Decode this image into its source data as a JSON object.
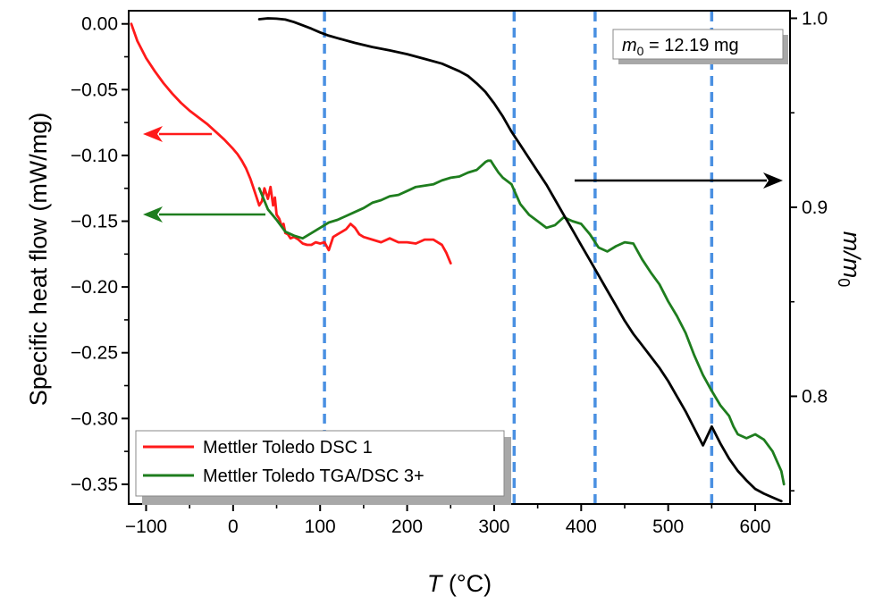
{
  "chart_data": {
    "type": "line",
    "x_axis": {
      "label_symbol": "T",
      "label_unit": " (°C)",
      "range": [
        -120,
        640
      ],
      "ticks": [
        -100,
        0,
        100,
        200,
        300,
        400,
        500,
        600
      ],
      "tick_labels": [
        "−100",
        "0",
        "100",
        "200",
        "300",
        "400",
        "500",
        "600"
      ]
    },
    "y_left": {
      "label": "Specific heat flow (mW/mg)",
      "range": [
        -0.365,
        0.01
      ],
      "ticks": [
        0.0,
        -0.05,
        -0.1,
        -0.15,
        -0.2,
        -0.25,
        -0.3,
        -0.35
      ],
      "tick_labels": [
        "0.00",
        "−0.05",
        "−0.10",
        "−0.15",
        "−0.20",
        "−0.25",
        "−0.30",
        "−0.35"
      ]
    },
    "y_right": {
      "label_main": "m/m",
      "label_sub": "0",
      "range": [
        0.743,
        1.004
      ],
      "ticks": [
        1.0,
        0.9,
        0.8
      ],
      "tick_labels": [
        "1.0",
        "0.9",
        "0.8"
      ]
    },
    "vertical_lines": [
      105,
      323,
      416,
      550
    ],
    "colors": {
      "dsc1": "#ff1a1a",
      "tga": "#1e7d1e",
      "mass": "#000000",
      "vline": "#4a90e2"
    },
    "series": [
      {
        "name": "Mettler Toledo DSC 1",
        "axis": "left",
        "x": [
          -117,
          -110,
          -100,
          -90,
          -80,
          -70,
          -60,
          -50,
          -40,
          -30,
          -20,
          -10,
          0,
          5,
          10,
          15,
          20,
          25,
          30,
          33,
          36,
          40,
          43,
          46,
          48,
          50,
          53,
          56,
          58,
          60,
          63,
          66,
          70,
          75,
          80,
          85,
          90,
          95,
          100,
          105,
          110,
          115,
          120,
          125,
          130,
          135,
          140,
          145,
          150,
          160,
          170,
          180,
          190,
          200,
          210,
          220,
          230,
          240,
          245,
          250
        ],
        "y": [
          0.0,
          -0.013,
          -0.026,
          -0.036,
          -0.045,
          -0.053,
          -0.06,
          -0.066,
          -0.071,
          -0.076,
          -0.082,
          -0.088,
          -0.095,
          -0.099,
          -0.104,
          -0.11,
          -0.118,
          -0.128,
          -0.138,
          -0.135,
          -0.125,
          -0.133,
          -0.124,
          -0.138,
          -0.132,
          -0.145,
          -0.148,
          -0.154,
          -0.152,
          -0.159,
          -0.16,
          -0.163,
          -0.162,
          -0.164,
          -0.167,
          -0.168,
          -0.168,
          -0.166,
          -0.167,
          -0.166,
          -0.172,
          -0.162,
          -0.16,
          -0.158,
          -0.156,
          -0.152,
          -0.155,
          -0.16,
          -0.162,
          -0.164,
          -0.166,
          -0.163,
          -0.166,
          -0.166,
          -0.167,
          -0.164,
          -0.164,
          -0.168,
          -0.174,
          -0.182
        ]
      },
      {
        "name": "Mettler Toledo TGA/DSC 3+",
        "axis": "left",
        "x": [
          30,
          40,
          50,
          60,
          70,
          80,
          90,
          100,
          110,
          120,
          130,
          140,
          150,
          160,
          170,
          180,
          190,
          200,
          210,
          220,
          230,
          240,
          250,
          260,
          270,
          280,
          290,
          293,
          296,
          300,
          305,
          310,
          320,
          330,
          340,
          350,
          360,
          370,
          380,
          390,
          400,
          410,
          420,
          430,
          440,
          450,
          460,
          470,
          480,
          490,
          500,
          510,
          520,
          530,
          540,
          550,
          560,
          570,
          575,
          580,
          590,
          600,
          610,
          620,
          630,
          633
        ],
        "y": [
          -0.125,
          -0.141,
          -0.149,
          -0.158,
          -0.161,
          -0.163,
          -0.159,
          -0.155,
          -0.151,
          -0.149,
          -0.146,
          -0.143,
          -0.14,
          -0.136,
          -0.134,
          -0.131,
          -0.13,
          -0.127,
          -0.124,
          -0.123,
          -0.122,
          -0.119,
          -0.117,
          -0.116,
          -0.113,
          -0.111,
          -0.105,
          -0.104,
          -0.104,
          -0.108,
          -0.113,
          -0.117,
          -0.122,
          -0.137,
          -0.145,
          -0.15,
          -0.155,
          -0.153,
          -0.147,
          -0.15,
          -0.152,
          -0.16,
          -0.17,
          -0.173,
          -0.169,
          -0.166,
          -0.167,
          -0.179,
          -0.189,
          -0.198,
          -0.211,
          -0.222,
          -0.235,
          -0.252,
          -0.267,
          -0.279,
          -0.29,
          -0.298,
          -0.306,
          -0.312,
          -0.315,
          -0.312,
          -0.316,
          -0.325,
          -0.34,
          -0.35
        ]
      },
      {
        "name": "m/m0",
        "axis": "right",
        "x": [
          30,
          40,
          50,
          60,
          70,
          80,
          90,
          100,
          110,
          120,
          140,
          160,
          180,
          200,
          220,
          240,
          260,
          270,
          280,
          290,
          300,
          310,
          320,
          330,
          340,
          350,
          360,
          370,
          380,
          390,
          400,
          410,
          420,
          430,
          440,
          450,
          460,
          470,
          480,
          490,
          500,
          510,
          520,
          530,
          540,
          550,
          560,
          570,
          580,
          590,
          600,
          610,
          620,
          630
        ],
        "y": [
          0.9995,
          1.0,
          0.9998,
          0.9993,
          0.998,
          0.9963,
          0.9945,
          0.9925,
          0.9908,
          0.9895,
          0.987,
          0.9848,
          0.983,
          0.981,
          0.9785,
          0.976,
          0.972,
          0.9695,
          0.9655,
          0.961,
          0.955,
          0.948,
          0.94,
          0.933,
          0.926,
          0.919,
          0.912,
          0.904,
          0.896,
          0.888,
          0.88,
          0.872,
          0.864,
          0.856,
          0.848,
          0.84,
          0.833,
          0.827,
          0.821,
          0.815,
          0.808,
          0.8,
          0.792,
          0.783,
          0.774,
          0.784,
          0.775,
          0.767,
          0.7605,
          0.7555,
          0.751,
          0.7485,
          0.7465,
          0.7445
        ]
      }
    ],
    "legend": [
      {
        "label": "Mettler Toledo DSC 1",
        "color": "#ff1a1a"
      },
      {
        "label": "Mettler Toledo TGA/DSC 3+",
        "color": "#1e7d1e"
      }
    ],
    "annotation": {
      "symbol": "m",
      "subscript": "0",
      "text": " = 12.19 mg"
    },
    "arrows": [
      {
        "color": "#ff1a1a",
        "direction": "left",
        "axis": "left"
      },
      {
        "color": "#1e7d1e",
        "direction": "left",
        "axis": "left"
      },
      {
        "color": "#000000",
        "direction": "right",
        "axis": "right"
      }
    ]
  }
}
